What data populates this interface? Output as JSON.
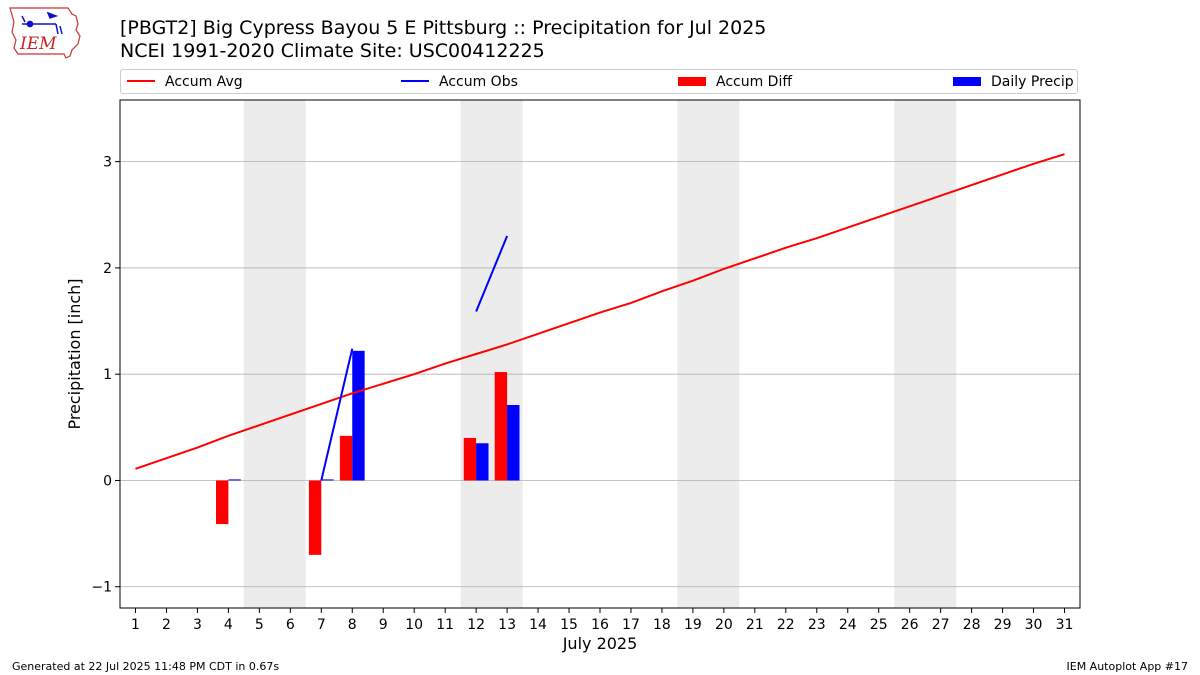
{
  "header": {
    "logo_text": "IEM",
    "title_line1": "[PBGT2] Big Cypress Bayou 5 E Pittsburg :: Precipitation for Jul 2025",
    "title_line2": "NCEI 1991-2020 Climate Site: USC00412225"
  },
  "legend": {
    "accum_avg": "Accum Avg",
    "accum_obs": "Accum Obs",
    "accum_diff": "Accum Diff",
    "daily_precip": "Daily Precip"
  },
  "footer": {
    "generated": "Generated at 22 Jul 2025 11:48 PM CDT in 0.67s",
    "app": "IEM Autoplot App #17"
  },
  "colors": {
    "avg": "#ff0000",
    "obs": "#0000ff",
    "diff": "#ff0000",
    "precip": "#0000ff",
    "weekend": "#ececec",
    "grid": "#b0b0b0"
  },
  "chart_data": {
    "type": "bar",
    "title": "[PBGT2] Big Cypress Bayou 5 E Pittsburg :: Precipitation for Jul 2025",
    "xlabel": "July 2025",
    "ylabel": "Precipitation [inch]",
    "xlim": [
      0.5,
      31.5
    ],
    "ylim": [
      -1.2,
      3.58
    ],
    "yticks": [
      -1,
      0,
      1,
      2,
      3
    ],
    "ytick_labels": [
      "−1",
      "0",
      "1",
      "2",
      "3"
    ],
    "days": [
      1,
      2,
      3,
      4,
      5,
      6,
      7,
      8,
      9,
      10,
      11,
      12,
      13,
      14,
      15,
      16,
      17,
      18,
      19,
      20,
      21,
      22,
      23,
      24,
      25,
      26,
      27,
      28,
      29,
      30,
      31
    ],
    "weekend_spans": [
      [
        4.5,
        6.5
      ],
      [
        11.5,
        13.5
      ],
      [
        18.5,
        20.5
      ],
      [
        25.5,
        27.5
      ]
    ],
    "series": [
      {
        "name": "Accum Avg",
        "kind": "line",
        "x": [
          1,
          2,
          3,
          4,
          5,
          6,
          7,
          8,
          9,
          10,
          11,
          12,
          13,
          14,
          15,
          16,
          17,
          18,
          19,
          20,
          21,
          22,
          23,
          24,
          25,
          26,
          27,
          28,
          29,
          30,
          31
        ],
        "values": [
          0.11,
          0.21,
          0.31,
          0.42,
          0.52,
          0.62,
          0.72,
          0.82,
          0.91,
          1.0,
          1.1,
          1.19,
          1.28,
          1.38,
          1.48,
          1.58,
          1.67,
          1.78,
          1.88,
          1.99,
          2.09,
          2.19,
          2.28,
          2.38,
          2.48,
          2.58,
          2.68,
          2.78,
          2.88,
          2.98,
          3.07
        ]
      },
      {
        "name": "Accum Obs",
        "kind": "line",
        "segments": [
          {
            "x": [
              7,
              8
            ],
            "values": [
              0.0,
              1.24
            ]
          },
          {
            "x": [
              12,
              13
            ],
            "values": [
              1.59,
              2.3
            ]
          }
        ]
      },
      {
        "name": "Accum Diff",
        "kind": "bar",
        "x": [
          4,
          7,
          8,
          12,
          13
        ],
        "values": [
          -0.41,
          -0.7,
          0.42,
          0.4,
          1.02
        ]
      },
      {
        "name": "Daily Precip",
        "kind": "bar",
        "x": [
          4,
          7,
          8,
          12,
          13
        ],
        "values": [
          0.01,
          0.01,
          1.22,
          0.35,
          0.71
        ]
      }
    ]
  }
}
